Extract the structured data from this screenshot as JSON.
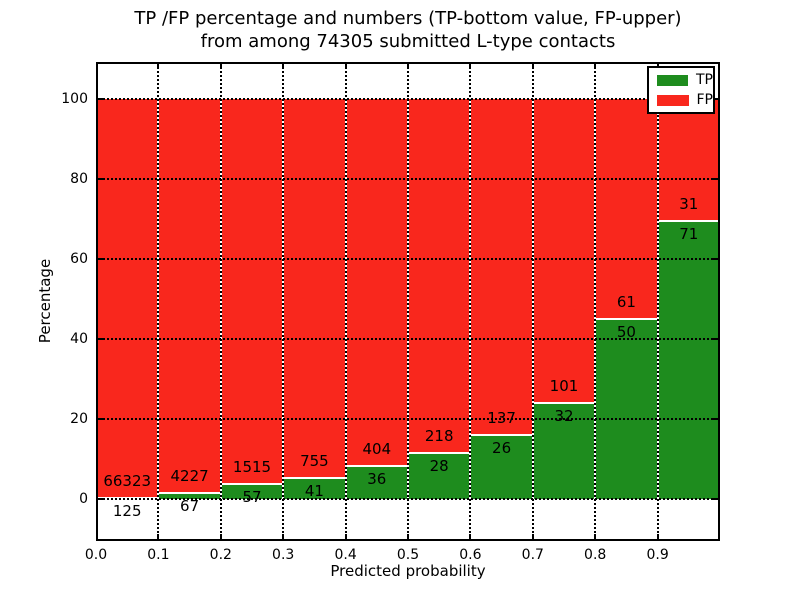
{
  "title": {
    "line1": "TP /FP percentage and numbers (TP-bottom value, FP-upper)",
    "line2": "from among 74305 submitted L-type contacts"
  },
  "chart_data": {
    "type": "bar",
    "stacked": true,
    "normalized": "percent of bin (TP+FP = 100%)",
    "title": "TP /FP percentage and numbers (TP-bottom value, FP-upper) from among 74305 submitted L-type contacts",
    "xlabel": "Predicted probability",
    "ylabel": "Percentage",
    "total_contacts": 74305,
    "bin_starts": [
      0.0,
      0.1,
      0.2,
      0.3,
      0.4,
      0.5,
      0.6,
      0.7,
      0.8,
      0.9
    ],
    "bin_width": 0.1,
    "series": [
      {
        "name": "TP",
        "color": "#1e8c1e",
        "counts": [
          125,
          67,
          57,
          41,
          36,
          28,
          26,
          32,
          50,
          71
        ],
        "percent": [
          0.19,
          1.56,
          3.63,
          5.15,
          8.18,
          11.38,
          15.95,
          24.06,
          45.05,
          69.61
        ]
      },
      {
        "name": "FP",
        "color": "#f9271d",
        "counts": [
          66323,
          4227,
          1515,
          755,
          404,
          218,
          137,
          101,
          61,
          31
        ],
        "percent": [
          99.81,
          98.44,
          96.37,
          94.85,
          91.82,
          88.62,
          84.05,
          75.94,
          54.95,
          30.39
        ]
      }
    ],
    "xticks": [
      "0.0",
      "0.1",
      "0.2",
      "0.3",
      "0.4",
      "0.5",
      "0.6",
      "0.7",
      "0.8",
      "0.9"
    ],
    "yticks": [
      0,
      20,
      40,
      60,
      80,
      100
    ],
    "xlim": [
      0.0,
      1.0
    ],
    "ylim": [
      -10.5,
      109.8
    ],
    "grid": "dotted black, both axes, drawn over bars",
    "legend": {
      "position": "upper right",
      "entries": [
        {
          "label": "TP",
          "color": "#1e8c1e"
        },
        {
          "label": "FP",
          "color": "#f9271d"
        }
      ]
    }
  }
}
